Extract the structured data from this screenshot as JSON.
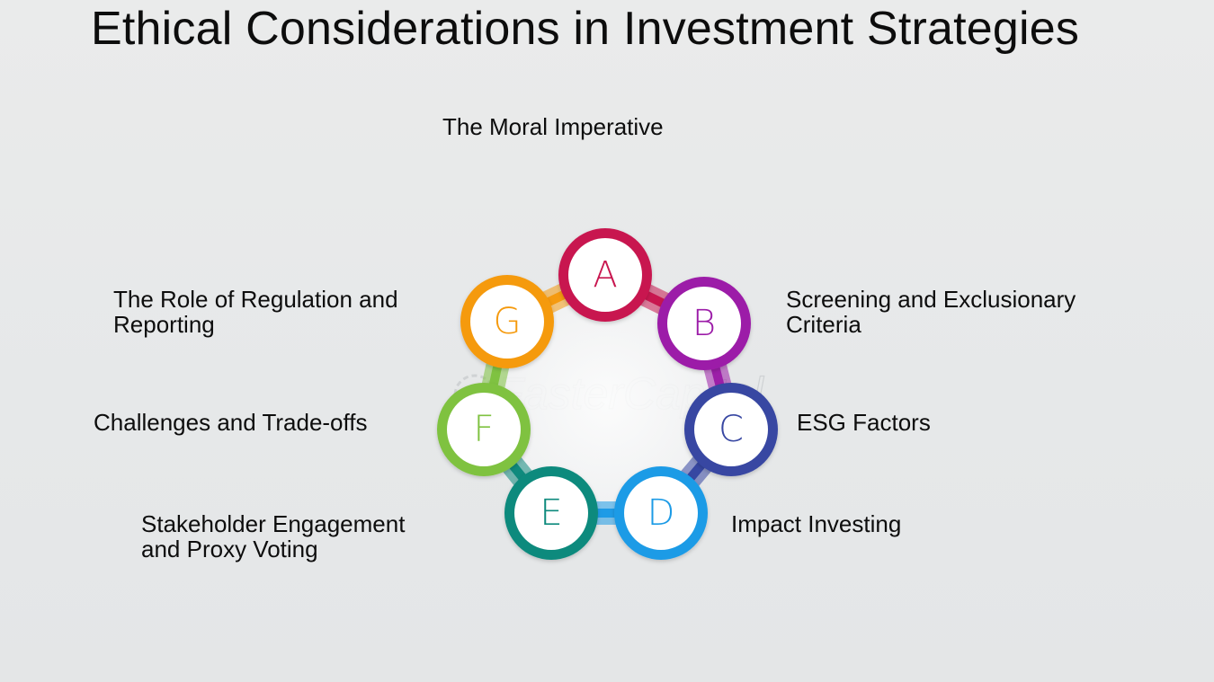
{
  "title": "Ethical Considerations in Investment Strategies",
  "watermark": "FasterCapital",
  "nodes": [
    {
      "letter": "A",
      "label": "The Moral Imperative",
      "color": "#c8174f"
    },
    {
      "letter": "B",
      "label": "Screening and Exclusionary\nCriteria",
      "color": "#9c1fa8"
    },
    {
      "letter": "C",
      "label": "ESG Factors",
      "color": "#3747a2"
    },
    {
      "letter": "D",
      "label": "Impact Investing",
      "color": "#1e9be6"
    },
    {
      "letter": "E",
      "label": "Stakeholder Engagement\nand Proxy Voting",
      "color": "#0f8a7d"
    },
    {
      "letter": "F",
      "label": "Challenges and Trade-offs",
      "color": "#7fc241"
    },
    {
      "letter": "G",
      "label": "The Role of Regulation and\nReporting",
      "color": "#f59a10"
    }
  ]
}
